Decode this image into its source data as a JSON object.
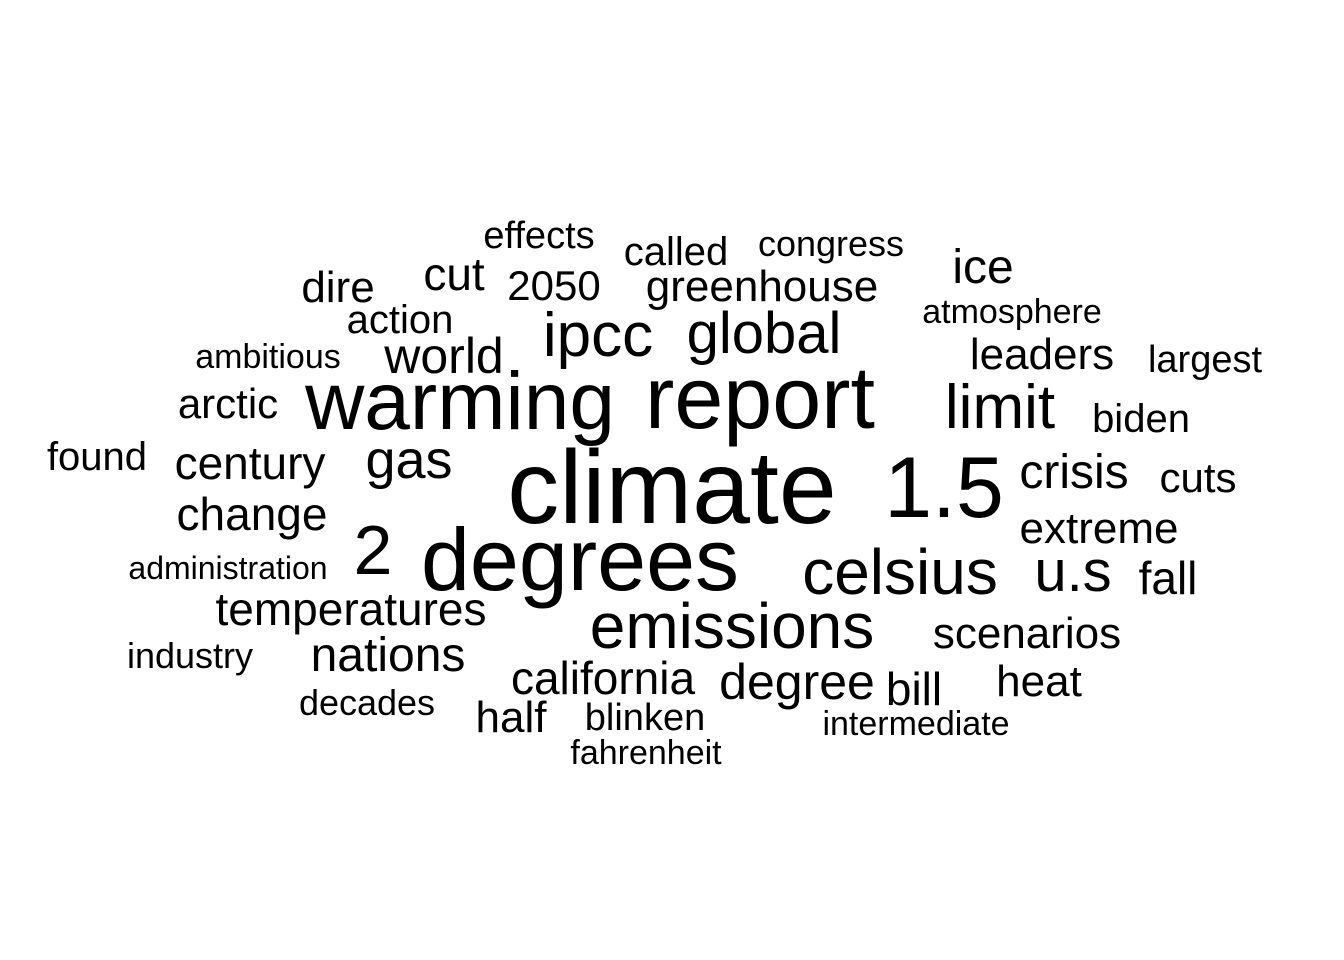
{
  "words": [
    {
      "text": "climate"
    },
    {
      "text": "degrees"
    },
    {
      "text": "report"
    },
    {
      "text": "warming"
    },
    {
      "text": "1.5"
    },
    {
      "text": "emissions"
    },
    {
      "text": "celsius"
    },
    {
      "text": "2"
    },
    {
      "text": "ipcc"
    },
    {
      "text": "global"
    },
    {
      "text": "limit"
    },
    {
      "text": "u.s"
    },
    {
      "text": "world"
    },
    {
      "text": "gas"
    },
    {
      "text": "crisis"
    },
    {
      "text": "degree"
    },
    {
      "text": "extreme"
    },
    {
      "text": "nations"
    },
    {
      "text": "california"
    },
    {
      "text": "temperatures"
    },
    {
      "text": "century"
    },
    {
      "text": "change"
    },
    {
      "text": "cut"
    },
    {
      "text": "leaders"
    },
    {
      "text": "greenhouse"
    },
    {
      "text": "heat"
    },
    {
      "text": "ice"
    },
    {
      "text": "scenarios"
    },
    {
      "text": "fall"
    },
    {
      "text": "bill"
    },
    {
      "text": "half"
    },
    {
      "text": "dire"
    },
    {
      "text": "cuts"
    },
    {
      "text": "2050"
    },
    {
      "text": "called"
    },
    {
      "text": "action"
    },
    {
      "text": "arctic"
    },
    {
      "text": "biden"
    },
    {
      "text": "blinken"
    },
    {
      "text": "effects"
    },
    {
      "text": "largest"
    },
    {
      "text": "found"
    },
    {
      "text": "congress"
    },
    {
      "text": "decades"
    },
    {
      "text": "industry"
    },
    {
      "text": "ambitious"
    },
    {
      "text": "atmosphere"
    },
    {
      "text": "fahrenheit"
    },
    {
      "text": "intermediate"
    },
    {
      "text": "administration"
    }
  ]
}
